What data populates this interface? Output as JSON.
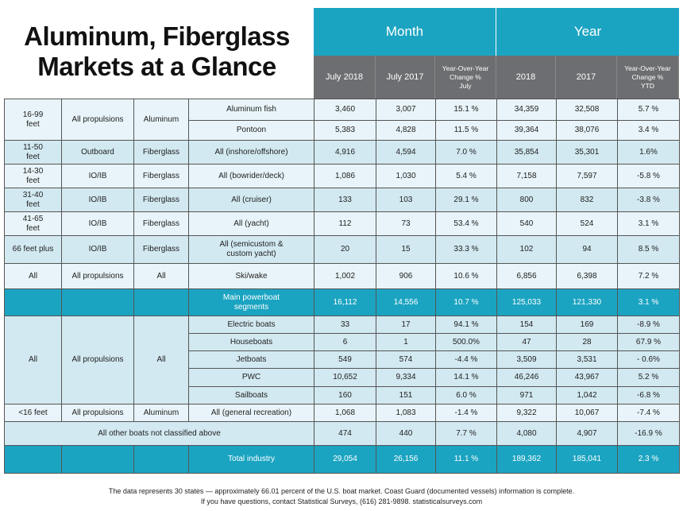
{
  "title": "Aluminum, Fiberglass\nMarkets at a Glance",
  "header": {
    "month": "Month",
    "year": "Year",
    "columns": [
      "July 2018",
      "July 2017",
      "Year-Over-Year\nChange %\nJuly",
      "2018",
      "2017",
      "Year-Over-Year\nChange %\nYTD"
    ]
  },
  "groups": [
    {
      "size": "16-99\nfeet",
      "propulsion": "All propulsions",
      "material": "Aluminum",
      "rows": [
        {
          "segment": "Aluminum fish",
          "values": [
            "3,460",
            "3,007",
            "15.1 %",
            "34,359",
            "32,508",
            "5.7 %"
          ]
        },
        {
          "segment": "Pontoon",
          "values": [
            "5,383",
            "4,828",
            "11.5 %",
            "39,364",
            "38,076",
            "3.4 %"
          ]
        }
      ]
    },
    {
      "size": "11-50\nfeet",
      "propulsion": "Outboard",
      "material": "Fiberglass",
      "rows": [
        {
          "segment": "All (inshore/offshore)",
          "values": [
            "4,916",
            "4,594",
            "7.0 %",
            "35,854",
            "35,301",
            "1.6%"
          ]
        }
      ]
    },
    {
      "size": "14-30\nfeet",
      "propulsion": "IO/IB",
      "material": "Fiberglass",
      "rows": [
        {
          "segment": "All (bowrider/deck)",
          "values": [
            "1,086",
            "1,030",
            "5.4 %",
            "7,158",
            "7,597",
            "-5.8 %"
          ]
        }
      ]
    },
    {
      "size": "31-40\nfeet",
      "propulsion": "IO/IB",
      "material": "Fiberglass",
      "rows": [
        {
          "segment": "All (cruiser)",
          "values": [
            "133",
            "103",
            "29.1 %",
            "800",
            "832",
            "-3.8 %"
          ]
        }
      ]
    },
    {
      "size": "41-65\nfeet",
      "propulsion": "IO/IB",
      "material": "Fiberglass",
      "rows": [
        {
          "segment": "All (yacht)",
          "values": [
            "112",
            "73",
            "53.4 %",
            "540",
            "524",
            "3.1 %"
          ]
        }
      ]
    },
    {
      "size": "66 feet plus",
      "propulsion": "IO/IB",
      "material": "Fiberglass",
      "rows": [
        {
          "segment": "All (semicustom &\ncustom yacht)",
          "values": [
            "20",
            "15",
            "33.3 %",
            "102",
            "94",
            "8.5 %"
          ]
        }
      ]
    },
    {
      "size": "All",
      "propulsion": "All propulsions",
      "material": "All",
      "rows": [
        {
          "segment": "Ski/wake",
          "values": [
            "1,002",
            "906",
            "10.6 %",
            "6,856",
            "6,398",
            "7.2 %"
          ]
        }
      ]
    },
    {
      "highlight": true,
      "rows": [
        {
          "segment": "Main powerboat\nsegments",
          "values": [
            "16,112",
            "14,556",
            "10.7 %",
            "125,033",
            "121,330",
            "3.1 %"
          ]
        }
      ]
    },
    {
      "size": "All",
      "propulsion": "All propulsions",
      "material": "All",
      "rows": [
        {
          "segment": "Electric boats",
          "values": [
            "33",
            "17",
            "94.1 %",
            "154",
            "169",
            "-8.9 %"
          ]
        },
        {
          "segment": "Houseboats",
          "values": [
            "6",
            "1",
            "500.0%",
            "47",
            "28",
            "67.9 %"
          ]
        },
        {
          "segment": "Jetboats",
          "values": [
            "549",
            "574",
            "-4.4 %",
            "3,509",
            "3,531",
            "- 0.6%"
          ]
        },
        {
          "segment": "PWC",
          "values": [
            "10,652",
            "9,334",
            "14.1 %",
            "46,246",
            "43,967",
            "5.2 %"
          ]
        },
        {
          "segment": "Sailboats",
          "values": [
            "160",
            "151",
            "6.0 %",
            "971",
            "1,042",
            "-6.8 %"
          ]
        }
      ]
    },
    {
      "size": "<16 feet",
      "propulsion": "All propulsions",
      "material": "Aluminum",
      "rows": [
        {
          "segment": "All (general recreation)",
          "values": [
            "1,068",
            "1,083",
            "-1.4 %",
            "9,322",
            "10,067",
            "-7.4 %"
          ]
        }
      ]
    },
    {
      "label": "All other boats not classified above",
      "rows": [
        {
          "values": [
            "474",
            "440",
            "7.7 %",
            "4,080",
            "4,907",
            "-16.9 %"
          ]
        }
      ]
    },
    {
      "highlight": true,
      "rows": [
        {
          "segment": "Total industry",
          "values": [
            "29,054",
            "26,156",
            "11.1 %",
            "189,362",
            "185,041",
            "2.3 %"
          ]
        }
      ]
    }
  ],
  "footer": [
    "The data represents 30 states — approximately 66.01 percent of the U.S. boat market. Coast Guard (documented vessels) information is complete.",
    "If you have questions, contact Statistical Surveys, (616) 281-9898. statisticalsurveys.com"
  ]
}
